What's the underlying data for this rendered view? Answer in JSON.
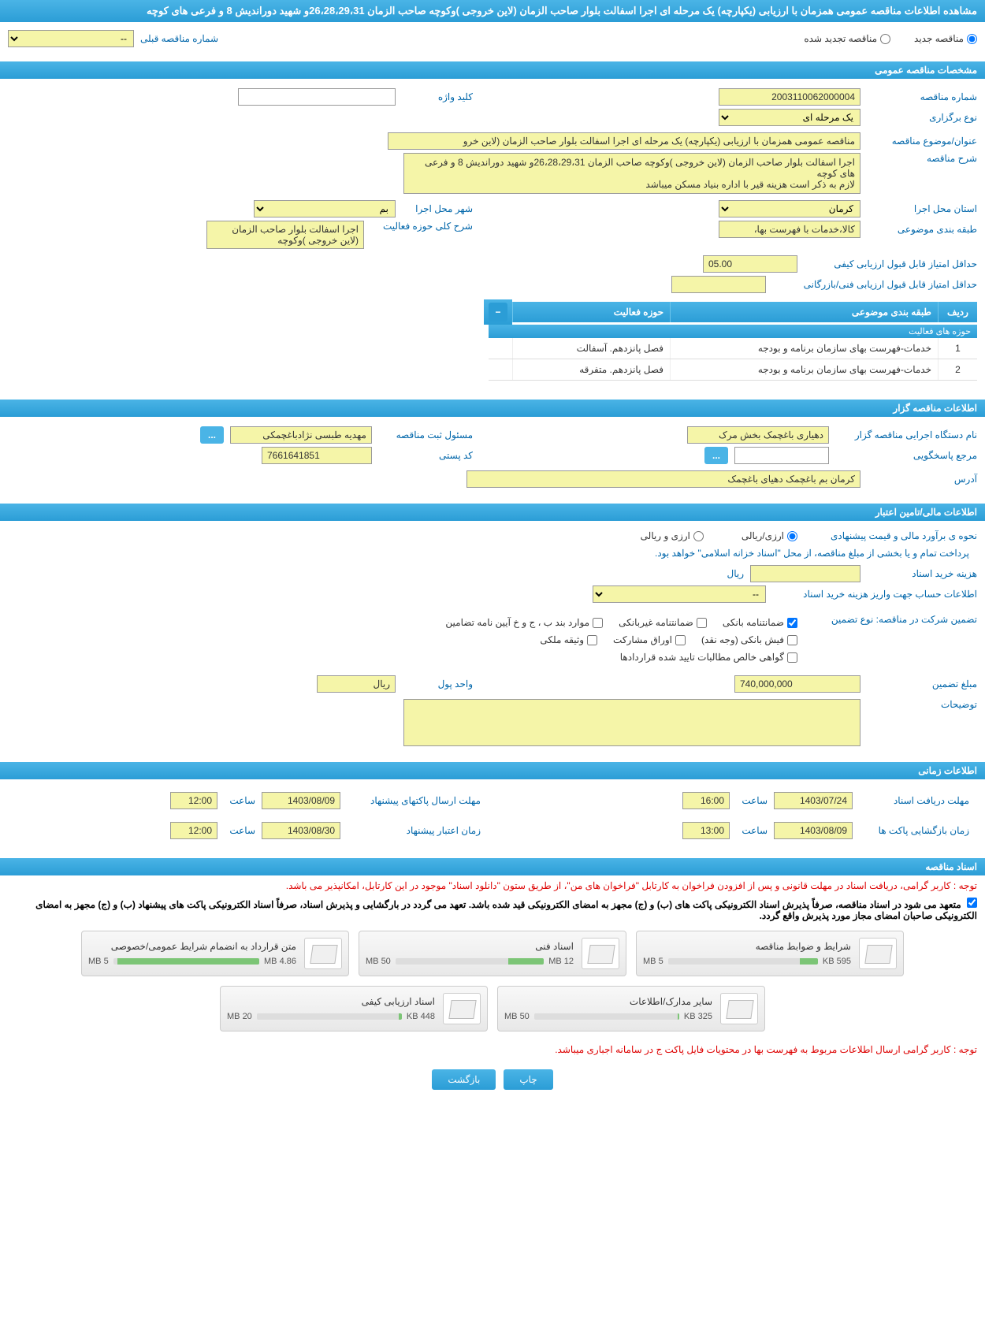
{
  "header": {
    "title": "مشاهده اطلاعات مناقصه عمومی همزمان با ارزیابی (یکپارچه) یک مرحله ای اجرا اسفالت بلوار صاحب الزمان (لاین خروجی )وکوچه صاحب الزمان 26،28،29،31و شهید دوراندیش 8 و فرعی های کوچه"
  },
  "tender_type": {
    "new_label": "مناقصه جدید",
    "renewed_label": "مناقصه تجدید شده",
    "prev_number_label": "شماره مناقصه قبلی",
    "prev_number_value": "--"
  },
  "general_section": {
    "title": "مشخصات مناقصه عمومی",
    "tender_number_label": "شماره مناقصه",
    "tender_number": "2003110062000004",
    "keyword_label": "کلید واژه",
    "keyword": "",
    "holding_type_label": "نوع برگزاری",
    "holding_type": "یک مرحله ای",
    "subject_label": "عنوان/موضوع مناقصه",
    "subject": "مناقصه عمومی همزمان با ارزیابی (یکپارچه) یک مرحله ای اجرا اسفالت بلوار صاحب الزمان (لاین خرو",
    "description_label": "شرح مناقصه",
    "description": "اجرا اسفالت بلوار صاحب الزمان (لاین خروجی )وکوچه صاحب الزمان  26،28،29،31و شهید دوراندیش 8 و فرعی های کوچه\nلازم به ذکر است هزینه قیر با اداره بنیاد مسکن میباشد",
    "province_label": "استان محل اجرا",
    "province": "کرمان",
    "city_label": "شهر محل اجرا",
    "city": "بم",
    "classification_label": "طبقه بندی موضوعی",
    "classification": "کالا،خدمات با فهرست بها،",
    "activity_desc_label": "شرح کلی حوزه فعالیت",
    "activity_desc": "اجرا اسفالت بلوار صاحب الزمان (لاین خروجی )وکوچه",
    "min_quality_score_label": "حداقل امتیاز قابل قبول ارزیابی کیفی",
    "min_quality_score": "05.00",
    "min_tech_score_label": "حداقل امتیاز قابل قبول ارزیابی فنی/بازرگانی",
    "min_tech_score": ""
  },
  "activity_table": {
    "title": "حوزه های فعالیت",
    "col_idx": "ردیف",
    "col_category": "طبقه بندی موضوعی",
    "col_activity": "حوزه فعالیت",
    "rows": [
      {
        "idx": "1",
        "category": "خدمات-فهرست بهای سازمان برنامه و بودجه",
        "activity": "فصل پانزدهم. آسفالت"
      },
      {
        "idx": "2",
        "category": "خدمات-فهرست بهای سازمان برنامه و بودجه",
        "activity": "فصل پانزدهم. متفرقه"
      }
    ]
  },
  "organizer_section": {
    "title": "اطلاعات مناقصه گزار",
    "org_name_label": "نام دستگاه اجرایی مناقصه گزار",
    "org_name": "دهیاری باغچمک بخش مرک",
    "responsible_label": "مسئول ثبت مناقصه",
    "responsible": "مهدیه طبسی نژادباغچمکی",
    "contact_label": "مرجع پاسخگویی",
    "contact": "",
    "postal_label": "کد پستی",
    "postal": "7661641851",
    "address_label": "آدرس",
    "address": "کرمان بم باغچمک دهیای باغچمک"
  },
  "financial_section": {
    "title": "اطلاعات مالی/تامین اعتبار",
    "estimate_method_label": "نحوه ی برآورد مالی و قیمت پیشنهادی",
    "currency_rial": "ارزی/ریالی",
    "currency_both": "ارزی و ریالی",
    "payment_note": "پرداخت تمام و یا بخشی از مبلغ مناقصه، از محل \"اسناد خزانه اسلامی\" خواهد بود.",
    "doc_fee_label": "هزینه خرید اسناد",
    "doc_fee": "",
    "doc_fee_unit": "ریال",
    "account_info_label": "اطلاعات حساب جهت واریز هزینه خرید اسناد",
    "account_info": "--",
    "guarantee_label": "تضمین شرکت در مناقصه:   نوع تضمین",
    "checkboxes": {
      "bank_guarantee": "ضمانتنامه بانکی",
      "non_bank_guarantee": "ضمانتنامه غیربانکی",
      "appendix": "موارد بند ب ، ج و خ آیین نامه تضامین",
      "bank_receipt": "فیش بانکی (وجه نقد)",
      "participation_bonds": "اوراق مشارکت",
      "property_deed": "وثیقه ملکی",
      "contract_cert": "گواهی خالص مطالبات تایید شده قراردادها"
    },
    "guarantee_amount_label": "مبلغ تضمین",
    "guarantee_amount": "740,000,000",
    "currency_unit_label": "واحد پول",
    "currency_unit": "ریال",
    "notes_label": "توضیحات",
    "notes": ""
  },
  "time_section": {
    "title": "اطلاعات زمانی",
    "receive_deadline_label": "مهلت دریافت اسناد",
    "receive_date": "1403/07/24",
    "receive_time_label": "ساعت",
    "receive_time": "16:00",
    "submit_deadline_label": "مهلت ارسال پاکتهای پیشنهاد",
    "submit_date": "1403/08/09",
    "submit_time_label": "ساعت",
    "submit_time": "12:00",
    "opening_label": "زمان بازگشایی پاکت ها",
    "opening_date": "1403/08/09",
    "opening_time_label": "ساعت",
    "opening_time": "13:00",
    "validity_label": "زمان اعتبار پیشنهاد",
    "validity_date": "1403/08/30",
    "validity_time_label": "ساعت",
    "validity_time": "12:00"
  },
  "documents_section": {
    "title": "اسناد مناقصه",
    "note1": "توجه : کاربر گرامی، دریافت اسناد در مهلت قانونی و پس از افزودن فراخوان به کارتابل \"فراخوان های من\"، از طریق ستون \"دانلود اسناد\" موجود در این کارتابل، امکانپذیر می باشد.",
    "note2": "متعهد می شود در اسناد مناقصه، صرفاً پذیرش اسناد الکترونیکی پاکت های (ب) و (ج) مجهز به امضای الکترونیکی قید شده باشد. تعهد می گردد در بارگشایی و پذیرش اسناد، صرفاً اسناد الکترونیکی پاکت های پیشنهاد (ب) و (ج) مجهز به امضای الکترونیکی صاحبان امضای مجاز مورد پذیرش واقع گردد.",
    "docs": [
      {
        "title": "شرایط و ضوابط مناقصه",
        "used": "595 KB",
        "total": "5 MB",
        "pct": 12
      },
      {
        "title": "اسناد فنی",
        "used": "12 MB",
        "total": "50 MB",
        "pct": 24
      },
      {
        "title": "متن قرارداد به انضمام شرایط عمومی/خصوصی",
        "used": "4.86 MB",
        "total": "5 MB",
        "pct": 97
      },
      {
        "title": "سایر مدارک/اطلاعات",
        "used": "325 KB",
        "total": "50 MB",
        "pct": 1
      },
      {
        "title": "اسناد ارزیابی کیفی",
        "used": "448 KB",
        "total": "20 MB",
        "pct": 2
      }
    ],
    "bottom_note": "توجه : کاربر گرامی ارسال اطلاعات مربوط به فهرست بها در محتویات فایل پاکت ج در سامانه اجباری میباشد."
  },
  "buttons": {
    "print": "چاپ",
    "back": "بازگشت"
  },
  "colors": {
    "header_bg": "#2b9dd6",
    "yellow_bg": "#f5f5a8",
    "label_color": "#0066aa",
    "red": "#d00"
  }
}
